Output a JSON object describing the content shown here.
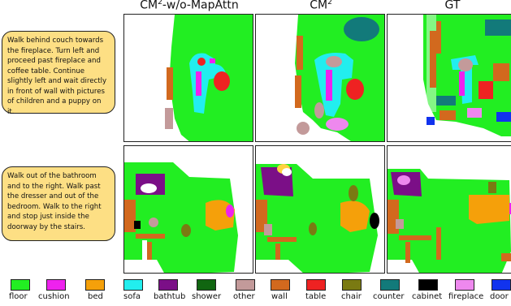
{
  "columns": [
    {
      "label": "CM",
      "sup": "2",
      "suffix": "-w/o-MapAttn"
    },
    {
      "label": "CM",
      "sup": "2",
      "suffix": ""
    },
    {
      "label": "GT",
      "sup": "",
      "suffix": ""
    }
  ],
  "instructions": [
    "Walk behind couch towards the fireplace. Turn left and proceed past fireplace and coffee table. Continue slightly left and wait directly in front of wall with pictures of children and a puppy on it.",
    "Walk out of the bathroom and to the right. Walk past the dresser and out of the bedroom. Walk to the right and stop just inside the doorway by the stairs."
  ],
  "legend": [
    {
      "label": "floor",
      "color": "#22ee22"
    },
    {
      "label": "cushion",
      "color": "#ee22ee"
    },
    {
      "label": "bed",
      "color": "#f5a00a"
    },
    {
      "label": "sofa",
      "color": "#22eeee"
    },
    {
      "label": "bathtub",
      "color": "#7b0f87"
    },
    {
      "label": "shower",
      "color": "#116611"
    },
    {
      "label": "other",
      "color": "#c39a9a"
    },
    {
      "label": "wall",
      "color": "#d2691e"
    },
    {
      "label": "table",
      "color": "#ee2222"
    },
    {
      "label": "chair",
      "color": "#7a7a12"
    },
    {
      "label": "counter",
      "color": "#127a7a"
    },
    {
      "label": "cabinet",
      "color": "#000000"
    },
    {
      "label": "fireplace",
      "color": "#ee88ee"
    },
    {
      "label": "door",
      "color": "#1133ee"
    }
  ]
}
